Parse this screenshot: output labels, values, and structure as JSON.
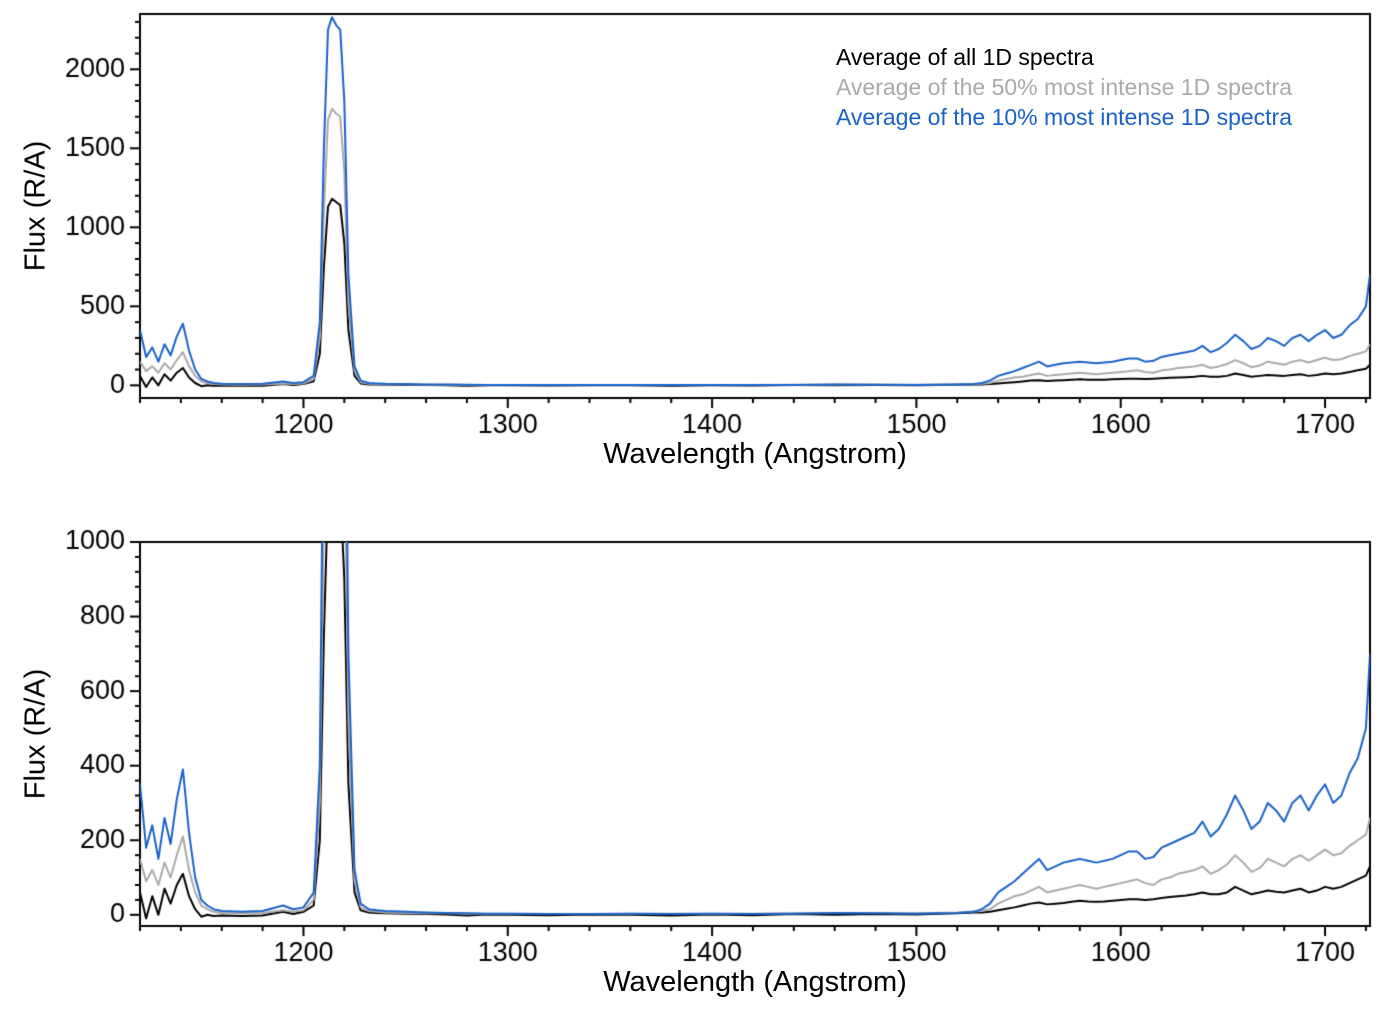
{
  "figure": {
    "background": "#ffffff"
  },
  "legend": {
    "items": [
      {
        "label": "Average of all 1D spectra",
        "color": "#000000"
      },
      {
        "label": "Average of the 50% most intense 1D spectra",
        "color": "#aaaaaa"
      },
      {
        "label": "Average of the 10% most intense 1D spectra",
        "color": "#1a62c9"
      }
    ]
  },
  "chart_data": [
    {
      "type": "line",
      "panel": "top",
      "title": "",
      "xlabel": "Wavelength (Angstrom)",
      "ylabel": "Flux (R/A)",
      "xlim": [
        1120,
        1722
      ],
      "ylim": [
        -80,
        2350
      ],
      "xticks": [
        1200,
        1300,
        1400,
        1500,
        1600,
        1700
      ],
      "x_minor_interval": 20,
      "yticks": [
        0,
        500,
        1000,
        1500,
        2000
      ],
      "y_minor_interval": 100,
      "grid": false,
      "legend_position": "top-right",
      "x": [
        1120,
        1123,
        1126,
        1129,
        1132,
        1135,
        1138,
        1141,
        1144,
        1147,
        1150,
        1153,
        1156,
        1160,
        1170,
        1180,
        1190,
        1195,
        1200,
        1205,
        1208,
        1210,
        1212,
        1214,
        1216,
        1218,
        1220,
        1222,
        1225,
        1228,
        1232,
        1236,
        1240,
        1250,
        1260,
        1270,
        1280,
        1290,
        1300,
        1320,
        1340,
        1360,
        1380,
        1400,
        1420,
        1440,
        1460,
        1480,
        1500,
        1510,
        1520,
        1528,
        1532,
        1536,
        1540,
        1544,
        1548,
        1552,
        1556,
        1560,
        1564,
        1568,
        1572,
        1576,
        1580,
        1584,
        1588,
        1592,
        1596,
        1600,
        1604,
        1608,
        1612,
        1616,
        1620,
        1624,
        1628,
        1632,
        1636,
        1640,
        1644,
        1648,
        1652,
        1656,
        1660,
        1664,
        1668,
        1672,
        1676,
        1680,
        1684,
        1688,
        1692,
        1696,
        1700,
        1704,
        1708,
        1712,
        1716,
        1720,
        1722
      ],
      "series": [
        {
          "name": "Average of all 1D spectra",
          "color": "#000000",
          "values": [
            60,
            -10,
            50,
            0,
            70,
            30,
            80,
            110,
            50,
            15,
            -5,
            0,
            -3,
            -2,
            -3,
            -2,
            8,
            2,
            8,
            25,
            200,
            750,
            1130,
            1180,
            1160,
            1140,
            900,
            350,
            60,
            12,
            6,
            5,
            4,
            3,
            2,
            1,
            -2,
            1,
            0,
            -1,
            1,
            0,
            -2,
            1,
            -1,
            2,
            0,
            2,
            1,
            3,
            4,
            6,
            6,
            8,
            12,
            16,
            20,
            25,
            30,
            33,
            28,
            30,
            32,
            35,
            38,
            36,
            35,
            36,
            38,
            40,
            42,
            42,
            40,
            42,
            45,
            48,
            50,
            52,
            55,
            60,
            55,
            55,
            60,
            75,
            65,
            55,
            60,
            65,
            62,
            60,
            65,
            70,
            60,
            65,
            75,
            70,
            75,
            85,
            95,
            105,
            130
          ]
        },
        {
          "name": "Average of the 50% most intense 1D spectra",
          "color": "#aaaaaa",
          "values": [
            150,
            90,
            120,
            80,
            140,
            100,
            160,
            210,
            120,
            60,
            25,
            15,
            8,
            5,
            4,
            5,
            12,
            8,
            12,
            40,
            300,
            1100,
            1680,
            1750,
            1720,
            1700,
            1350,
            520,
            90,
            20,
            10,
            8,
            6,
            5,
            4,
            4,
            3,
            3,
            3,
            2,
            2,
            3,
            3,
            3,
            3,
            4,
            5,
            5,
            4,
            5,
            6,
            9,
            10,
            15,
            30,
            40,
            50,
            55,
            65,
            75,
            60,
            65,
            70,
            75,
            80,
            75,
            70,
            75,
            80,
            85,
            90,
            95,
            85,
            80,
            95,
            100,
            110,
            115,
            120,
            130,
            110,
            120,
            135,
            160,
            140,
            115,
            125,
            150,
            140,
            130,
            150,
            160,
            145,
            160,
            175,
            160,
            165,
            185,
            200,
            215,
            260
          ]
        },
        {
          "name": "Average of the 10% most intense 1D spectra",
          "color": "#1a62c9",
          "values": [
            350,
            180,
            240,
            150,
            260,
            190,
            310,
            390,
            220,
            100,
            40,
            25,
            15,
            10,
            8,
            10,
            25,
            15,
            20,
            60,
            400,
            1500,
            2250,
            2330,
            2280,
            2250,
            1800,
            700,
            120,
            30,
            15,
            12,
            10,
            8,
            6,
            5,
            4,
            3,
            3,
            2,
            2,
            3,
            2,
            3,
            2,
            3,
            5,
            4,
            3,
            4,
            5,
            8,
            15,
            30,
            60,
            75,
            90,
            110,
            130,
            150,
            120,
            130,
            140,
            145,
            150,
            145,
            140,
            145,
            150,
            160,
            170,
            170,
            150,
            155,
            180,
            190,
            200,
            210,
            220,
            250,
            210,
            230,
            270,
            320,
            280,
            230,
            250,
            300,
            280,
            250,
            300,
            320,
            280,
            320,
            350,
            300,
            320,
            380,
            420,
            500,
            700
          ]
        }
      ]
    },
    {
      "type": "line",
      "panel": "bottom",
      "title": "",
      "xlabel": "Wavelength (Angstrom)",
      "ylabel": "Flux (R/A)",
      "xlim": [
        1120,
        1722
      ],
      "ylim": [
        -30,
        1000
      ],
      "xticks": [
        1200,
        1300,
        1400,
        1500,
        1600,
        1700
      ],
      "x_minor_interval": 20,
      "yticks": [
        0,
        200,
        400,
        600,
        800,
        1000
      ],
      "y_minor_interval": 40,
      "grid": false,
      "legend_position": "none",
      "uses_series_of_chart": 0,
      "note": "Same three spectra as top panel, y-axis zoomed to 0-1000 so the emission peak near 1215 A is clipped"
    }
  ]
}
